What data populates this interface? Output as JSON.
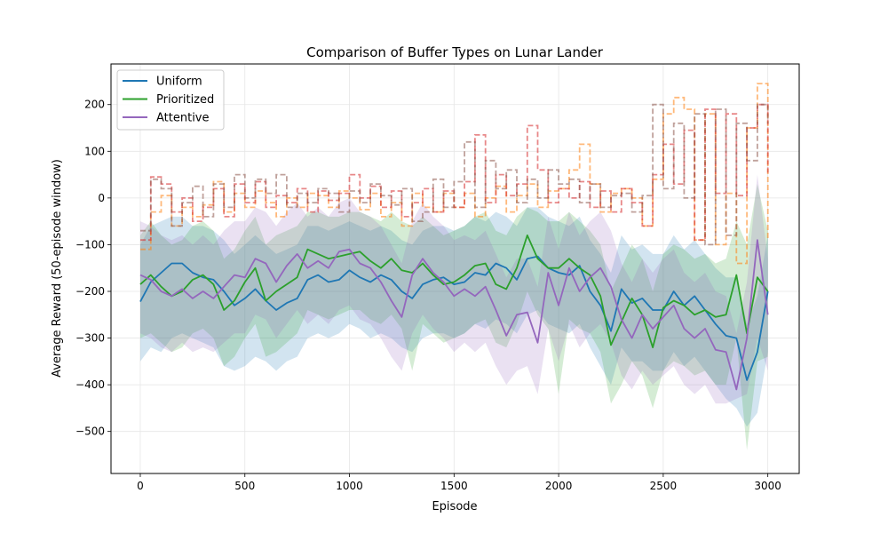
{
  "chart_data": {
    "type": "line",
    "title": "Comparison of Buffer Types on Lunar Lander",
    "xlabel": "Episode",
    "ylabel": "Average Reward (50-episode window)",
    "xlim": [
      -140,
      3150
    ],
    "ylim": [
      -590,
      287
    ],
    "xticks": [
      0,
      500,
      1000,
      1500,
      2000,
      2500,
      3000
    ],
    "yticks": [
      -500,
      -400,
      -300,
      -200,
      -100,
      0,
      100,
      200
    ],
    "grid": true,
    "legend_position": "top-left",
    "series": [
      {
        "name": "Uniform",
        "color": "#1f77b4",
        "x": [
          0,
          50,
          100,
          150,
          200,
          250,
          300,
          350,
          400,
          450,
          500,
          550,
          600,
          650,
          700,
          750,
          800,
          850,
          900,
          950,
          1000,
          1050,
          1100,
          1150,
          1200,
          1250,
          1300,
          1350,
          1400,
          1450,
          1500,
          1550,
          1600,
          1650,
          1700,
          1750,
          1800,
          1850,
          1900,
          1950,
          2000,
          2050,
          2100,
          2150,
          2200,
          2250,
          2300,
          2350,
          2400,
          2450,
          2500,
          2550,
          2600,
          2650,
          2700,
          2750,
          2800,
          2850,
          2900,
          2950,
          3000
        ],
        "y": [
          -222,
          -180,
          -160,
          -140,
          -140,
          -160,
          -170,
          -175,
          -200,
          -230,
          -215,
          -195,
          -220,
          -240,
          -225,
          -215,
          -175,
          -165,
          -180,
          -175,
          -155,
          -170,
          -180,
          -165,
          -175,
          -200,
          -215,
          -185,
          -175,
          -170,
          -185,
          -180,
          -160,
          -165,
          -140,
          -150,
          -175,
          -130,
          -125,
          -150,
          -160,
          -165,
          -145,
          -200,
          -230,
          -285,
          -195,
          -225,
          -215,
          -240,
          -240,
          -200,
          -230,
          -210,
          -240,
          -270,
          -295,
          -300,
          -390,
          -330,
          -200
        ],
        "band_low": [
          -350,
          -320,
          -330,
          -300,
          -290,
          -300,
          -310,
          -320,
          -360,
          -370,
          -360,
          -340,
          -350,
          -370,
          -350,
          -340,
          -300,
          -290,
          -300,
          -290,
          -270,
          -280,
          -300,
          -290,
          -300,
          -320,
          -330,
          -300,
          -290,
          -290,
          -300,
          -290,
          -270,
          -280,
          -260,
          -270,
          -290,
          -250,
          -240,
          -270,
          -280,
          -290,
          -270,
          -320,
          -360,
          -400,
          -320,
          -350,
          -350,
          -370,
          -370,
          -330,
          -360,
          -340,
          -370,
          -400,
          -430,
          -450,
          -490,
          -460,
          -330
        ],
        "band_high": [
          -100,
          -60,
          -50,
          -40,
          -40,
          -60,
          -60,
          -70,
          -90,
          -120,
          -100,
          -80,
          -100,
          -120,
          -110,
          -100,
          -60,
          -60,
          -70,
          -60,
          -50,
          -60,
          -70,
          -60,
          -70,
          -90,
          -100,
          -70,
          -60,
          -60,
          -70,
          -60,
          -40,
          -50,
          -30,
          -40,
          -60,
          -20,
          -20,
          -40,
          -50,
          -60,
          -40,
          -90,
          -120,
          -160,
          -80,
          -110,
          -100,
          -120,
          -120,
          -80,
          -110,
          -90,
          -120,
          -150,
          -170,
          -170,
          -270,
          -210,
          -80
        ]
      },
      {
        "name": "Prioritized",
        "color": "#2ca02c",
        "x": [
          0,
          50,
          100,
          150,
          200,
          250,
          300,
          350,
          400,
          450,
          500,
          550,
          600,
          650,
          700,
          750,
          800,
          850,
          900,
          950,
          1000,
          1050,
          1100,
          1150,
          1200,
          1250,
          1300,
          1350,
          1400,
          1450,
          1500,
          1550,
          1600,
          1650,
          1700,
          1750,
          1800,
          1850,
          1900,
          1950,
          2000,
          2050,
          2100,
          2150,
          2200,
          2250,
          2300,
          2350,
          2400,
          2450,
          2500,
          2550,
          2600,
          2650,
          2700,
          2750,
          2800,
          2850,
          2900,
          2950,
          3000
        ],
        "y": [
          -185,
          -165,
          -190,
          -210,
          -200,
          -175,
          -165,
          -185,
          -240,
          -220,
          -180,
          -150,
          -220,
          -200,
          -185,
          -170,
          -110,
          -120,
          -130,
          -125,
          -120,
          -115,
          -135,
          -150,
          -130,
          -155,
          -160,
          -140,
          -165,
          -185,
          -180,
          -165,
          -145,
          -140,
          -185,
          -195,
          -150,
          -80,
          -130,
          -150,
          -150,
          -130,
          -150,
          -165,
          -210,
          -315,
          -265,
          -215,
          -250,
          -320,
          -235,
          -220,
          -230,
          -250,
          -240,
          -255,
          -250,
          -165,
          -290,
          -170,
          -200
        ],
        "band_low": [
          -300,
          -290,
          -310,
          -330,
          -320,
          -290,
          -280,
          -300,
          -360,
          -340,
          -300,
          -270,
          -340,
          -330,
          -310,
          -290,
          -240,
          -250,
          -260,
          -250,
          -240,
          -240,
          -260,
          -270,
          -250,
          -280,
          -370,
          -270,
          -290,
          -310,
          -300,
          -290,
          -270,
          -260,
          -310,
          -320,
          -270,
          -200,
          -250,
          -280,
          -420,
          -260,
          -280,
          -290,
          -330,
          -440,
          -400,
          -350,
          -380,
          -450,
          -370,
          -350,
          -360,
          -380,
          -370,
          -400,
          -400,
          -300,
          -540,
          -350,
          -340
        ],
        "band_high": [
          -80,
          -50,
          -80,
          -100,
          -90,
          -60,
          -50,
          -70,
          -130,
          -110,
          -70,
          -40,
          -100,
          -80,
          -70,
          -60,
          -30,
          -30,
          -40,
          -40,
          -30,
          -30,
          -40,
          -50,
          -30,
          -50,
          -60,
          -40,
          -60,
          -80,
          -70,
          -60,
          -40,
          -30,
          -70,
          -80,
          -40,
          -20,
          -30,
          -50,
          -50,
          -30,
          -50,
          -70,
          -100,
          -200,
          -150,
          -100,
          -130,
          -200,
          -120,
          -100,
          -110,
          -130,
          -120,
          -140,
          -130,
          -50,
          -100,
          30,
          -70
        ]
      },
      {
        "name": "Attentive",
        "color": "#9467bd",
        "x": [
          0,
          50,
          100,
          150,
          200,
          250,
          300,
          350,
          400,
          450,
          500,
          550,
          600,
          650,
          700,
          750,
          800,
          850,
          900,
          950,
          1000,
          1050,
          1100,
          1150,
          1200,
          1250,
          1300,
          1350,
          1400,
          1450,
          1500,
          1550,
          1600,
          1650,
          1700,
          1750,
          1800,
          1850,
          1900,
          1950,
          2000,
          2050,
          2100,
          2150,
          2200,
          2250,
          2300,
          2350,
          2400,
          2450,
          2500,
          2550,
          2600,
          2650,
          2700,
          2750,
          2800,
          2850,
          2900,
          2950,
          3000
        ],
        "y": [
          -165,
          -175,
          -200,
          -210,
          -195,
          -215,
          -200,
          -215,
          -190,
          -165,
          -170,
          -130,
          -140,
          -180,
          -145,
          -120,
          -150,
          -135,
          -150,
          -115,
          -110,
          -140,
          -150,
          -180,
          -220,
          -255,
          -165,
          -130,
          -160,
          -180,
          -210,
          -195,
          -210,
          -190,
          -240,
          -295,
          -250,
          -245,
          -310,
          -160,
          -230,
          -150,
          -200,
          -170,
          -150,
          -190,
          -260,
          -300,
          -250,
          -280,
          -255,
          -230,
          -280,
          -300,
          -280,
          -325,
          -330,
          -410,
          -300,
          -90,
          -250
        ],
        "band_low": [
          -290,
          -300,
          -320,
          -330,
          -310,
          -330,
          -320,
          -330,
          -310,
          -290,
          -290,
          -250,
          -260,
          -300,
          -270,
          -240,
          -270,
          -250,
          -270,
          -240,
          -230,
          -260,
          -270,
          -300,
          -340,
          -370,
          -290,
          -250,
          -280,
          -300,
          -330,
          -310,
          -330,
          -310,
          -360,
          -400,
          -370,
          -360,
          -420,
          -280,
          -350,
          -270,
          -320,
          -290,
          -270,
          -310,
          -380,
          -410,
          -370,
          -400,
          -380,
          -360,
          -400,
          -420,
          -400,
          -440,
          -440,
          -430,
          -420,
          -300,
          -370
        ],
        "band_high": [
          -50,
          -60,
          -80,
          -90,
          -80,
          -100,
          -80,
          -100,
          -70,
          -50,
          -50,
          -20,
          -30,
          -60,
          -30,
          -10,
          -40,
          -20,
          -40,
          -10,
          0,
          -30,
          -40,
          -60,
          -100,
          -140,
          -50,
          -10,
          -40,
          -60,
          -90,
          -80,
          -90,
          -70,
          -120,
          -170,
          -130,
          -130,
          -190,
          -40,
          -110,
          -30,
          -80,
          -50,
          -30,
          -70,
          -140,
          -180,
          -130,
          -160,
          -130,
          -110,
          -160,
          -180,
          -160,
          -200,
          -210,
          -290,
          -180,
          50,
          -130
        ]
      },
      {
        "name": "",
        "color": "#ff7f0e",
        "style": "dashed-step",
        "x": [
          0,
          50,
          100,
          150,
          200,
          250,
          300,
          350,
          400,
          450,
          500,
          550,
          600,
          650,
          700,
          750,
          800,
          850,
          900,
          950,
          1000,
          1050,
          1100,
          1150,
          1200,
          1250,
          1300,
          1350,
          1400,
          1450,
          1500,
          1550,
          1600,
          1650,
          1700,
          1750,
          1800,
          1850,
          1900,
          1950,
          2000,
          2050,
          2100,
          2150,
          2200,
          2250,
          2300,
          2350,
          2400,
          2450,
          2500,
          2550,
          2600,
          2650,
          2700,
          2750,
          2800,
          2850,
          2900,
          2950,
          3000
        ],
        "y": [
          -110,
          -30,
          5,
          -60,
          -20,
          -40,
          -15,
          35,
          -30,
          10,
          -20,
          15,
          -10,
          -40,
          0,
          -20,
          10,
          5,
          -20,
          15,
          0,
          -25,
          10,
          -40,
          -10,
          -60,
          10,
          -20,
          -30,
          10,
          -20,
          10,
          -40,
          0,
          25,
          -30,
          5,
          30,
          -20,
          15,
          20,
          60,
          115,
          30,
          -30,
          10,
          20,
          0,
          -60,
          40,
          180,
          215,
          190,
          -90,
          180,
          -100,
          10,
          -140,
          150,
          245,
          -90
        ]
      },
      {
        "name": "",
        "color": "#d62728",
        "style": "dashed-step",
        "x": [
          0,
          50,
          100,
          150,
          200,
          250,
          300,
          350,
          400,
          450,
          500,
          550,
          600,
          650,
          700,
          750,
          800,
          850,
          900,
          950,
          1000,
          1050,
          1100,
          1150,
          1200,
          1250,
          1300,
          1350,
          1400,
          1450,
          1500,
          1550,
          1600,
          1650,
          1700,
          1750,
          1800,
          1850,
          1900,
          1950,
          2000,
          2050,
          2100,
          2150,
          2200,
          2250,
          2300,
          2350,
          2400,
          2450,
          2500,
          2550,
          2600,
          2650,
          2700,
          2750,
          2800,
          2850,
          2900,
          2950,
          3000
        ],
        "y": [
          -90,
          45,
          30,
          -30,
          0,
          -50,
          -20,
          20,
          -40,
          30,
          -10,
          35,
          -20,
          5,
          -10,
          20,
          -30,
          15,
          -5,
          10,
          50,
          0,
          25,
          -20,
          15,
          -40,
          -10,
          20,
          -30,
          15,
          -20,
          35,
          135,
          -10,
          50,
          5,
          30,
          155,
          60,
          -10,
          20,
          0,
          35,
          -20,
          15,
          -30,
          20,
          -10,
          -60,
          50,
          115,
          30,
          145,
          -90,
          190,
          10,
          180,
          5,
          150,
          200,
          50
        ]
      },
      {
        "name": "",
        "color": "#8c564b",
        "style": "dashed-step",
        "x": [
          0,
          50,
          100,
          150,
          200,
          250,
          300,
          350,
          400,
          450,
          500,
          550,
          600,
          650,
          700,
          750,
          800,
          850,
          900,
          950,
          1000,
          1050,
          1100,
          1150,
          1200,
          1250,
          1300,
          1350,
          1400,
          1450,
          1500,
          1550,
          1600,
          1650,
          1700,
          1750,
          1800,
          1850,
          1900,
          1950,
          2000,
          2050,
          2100,
          2150,
          2200,
          2250,
          2300,
          2350,
          2400,
          2450,
          2500,
          2550,
          2600,
          2650,
          2700,
          2750,
          2800,
          2850,
          2900,
          2950,
          3000
        ],
        "y": [
          -70,
          40,
          20,
          -60,
          -10,
          25,
          -40,
          30,
          -20,
          50,
          0,
          40,
          10,
          50,
          -20,
          10,
          -10,
          20,
          10,
          -30,
          15,
          -10,
          30,
          5,
          -15,
          20,
          -50,
          -30,
          40,
          -20,
          35,
          120,
          -20,
          80,
          20,
          60,
          -10,
          40,
          0,
          60,
          30,
          40,
          -10,
          30,
          -20,
          5,
          10,
          -30,
          5,
          200,
          20,
          160,
          0,
          180,
          -100,
          190,
          -80,
          160,
          80,
          200,
          160
        ]
      }
    ]
  }
}
